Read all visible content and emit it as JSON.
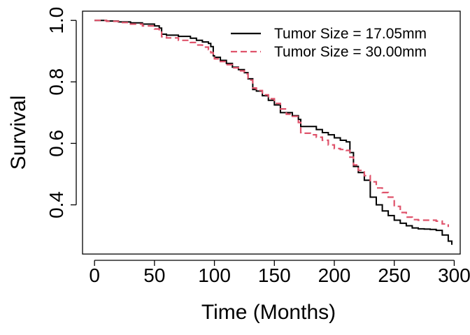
{
  "chart_data": {
    "type": "line",
    "title": "",
    "xlabel": "Time (Months)",
    "ylabel": "Survival",
    "xlim": [
      -10,
      305
    ],
    "ylim": [
      0.24,
      1.03
    ],
    "xticks": [
      0,
      50,
      100,
      150,
      200,
      250,
      300
    ],
    "xtick_labels": [
      "0",
      "50",
      "100",
      "150",
      "200",
      "250",
      "300"
    ],
    "yticks": [
      0.4,
      0.6,
      0.8,
      1.0
    ],
    "ytick_labels": [
      "0.4",
      "0.6",
      "0.8",
      "1.0"
    ],
    "legend_position": "top-right",
    "grid": false,
    "series": [
      {
        "name": "Tumor Size = 17.05mm",
        "color": "#000000",
        "dash": "solid",
        "x": [
          0,
          10,
          20,
          30,
          40,
          50,
          54,
          56,
          60,
          70,
          80,
          85,
          90,
          95,
          97,
          99,
          100,
          105,
          110,
          115,
          120,
          125,
          128,
          132,
          135,
          140,
          145,
          150,
          155,
          160,
          165,
          170,
          172,
          175,
          180,
          185,
          190,
          195,
          200,
          205,
          210,
          213,
          216,
          220,
          225,
          230,
          235,
          240,
          245,
          250,
          255,
          260,
          265,
          270,
          275,
          280,
          285,
          290,
          295,
          298
        ],
        "y": [
          1.0,
          0.998,
          0.995,
          0.992,
          0.988,
          0.982,
          0.975,
          0.955,
          0.952,
          0.948,
          0.942,
          0.935,
          0.93,
          0.925,
          0.915,
          0.885,
          0.88,
          0.87,
          0.86,
          0.848,
          0.84,
          0.83,
          0.81,
          0.775,
          0.77,
          0.755,
          0.74,
          0.725,
          0.7,
          0.7,
          0.69,
          0.678,
          0.655,
          0.655,
          0.655,
          0.645,
          0.635,
          0.628,
          0.618,
          0.61,
          0.605,
          0.57,
          0.525,
          0.505,
          0.48,
          0.425,
          0.4,
          0.38,
          0.365,
          0.35,
          0.34,
          0.332,
          0.325,
          0.322,
          0.321,
          0.32,
          0.317,
          0.302,
          0.282,
          0.27
        ]
      },
      {
        "name": "Tumor Size = 30.00mm",
        "color": "#df536b",
        "dash": "dashed",
        "x": [
          0,
          10,
          20,
          30,
          40,
          50,
          54,
          56,
          60,
          70,
          80,
          85,
          90,
          95,
          97,
          99,
          100,
          105,
          110,
          115,
          120,
          125,
          128,
          132,
          135,
          140,
          145,
          150,
          155,
          160,
          165,
          170,
          172,
          175,
          180,
          185,
          190,
          195,
          200,
          205,
          210,
          213,
          216,
          220,
          225,
          230,
          235,
          240,
          245,
          250,
          255,
          260,
          265,
          270,
          275,
          280,
          285,
          290,
          295
        ],
        "y": [
          1.0,
          0.997,
          0.993,
          0.988,
          0.982,
          0.972,
          0.962,
          0.947,
          0.943,
          0.935,
          0.928,
          0.92,
          0.913,
          0.905,
          0.895,
          0.88,
          0.875,
          0.866,
          0.856,
          0.846,
          0.836,
          0.826,
          0.806,
          0.78,
          0.772,
          0.758,
          0.745,
          0.73,
          0.712,
          0.695,
          0.688,
          0.668,
          0.635,
          0.633,
          0.628,
          0.62,
          0.61,
          0.595,
          0.583,
          0.58,
          0.577,
          0.555,
          0.53,
          0.512,
          0.495,
          0.475,
          0.455,
          0.44,
          0.425,
          0.395,
          0.375,
          0.36,
          0.352,
          0.35,
          0.35,
          0.35,
          0.347,
          0.338,
          0.328
        ]
      }
    ]
  }
}
